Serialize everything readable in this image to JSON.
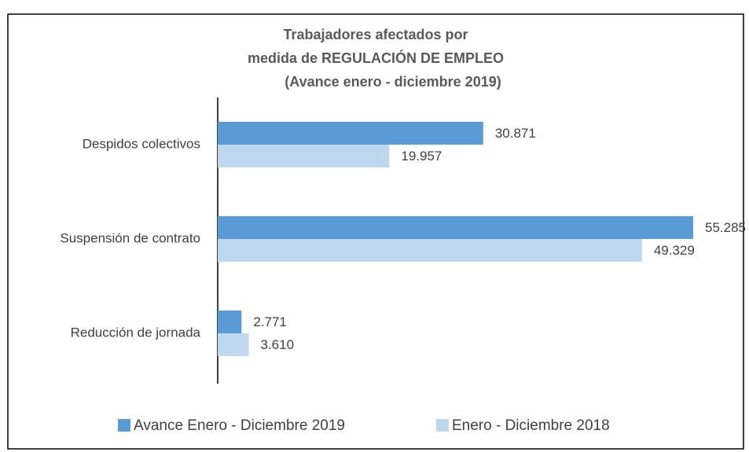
{
  "chart_data": {
    "type": "hbar",
    "title": [
      "Trabajadores  afectados por",
      "medida de REGULACIÓN DE EMPLEO",
      "(Avance enero - diciembre 2019)"
    ],
    "categories": [
      "Despidos colectivos",
      "Suspensión de contrato",
      "Reducción de jornada"
    ],
    "series": [
      {
        "name": "Avance Enero - Diciembre 2019",
        "color": "#5b9bd5",
        "values": [
          30871,
          55285,
          2771
        ],
        "value_labels": [
          "30.871",
          "55.285",
          "2.771"
        ]
      },
      {
        "name": "Enero - Diciembre 2018",
        "color": "#bdd7ee",
        "values": [
          19957,
          49329,
          3610
        ],
        "value_labels": [
          "19.957",
          "49.329",
          "3.610"
        ]
      }
    ],
    "legend": "bottom"
  }
}
